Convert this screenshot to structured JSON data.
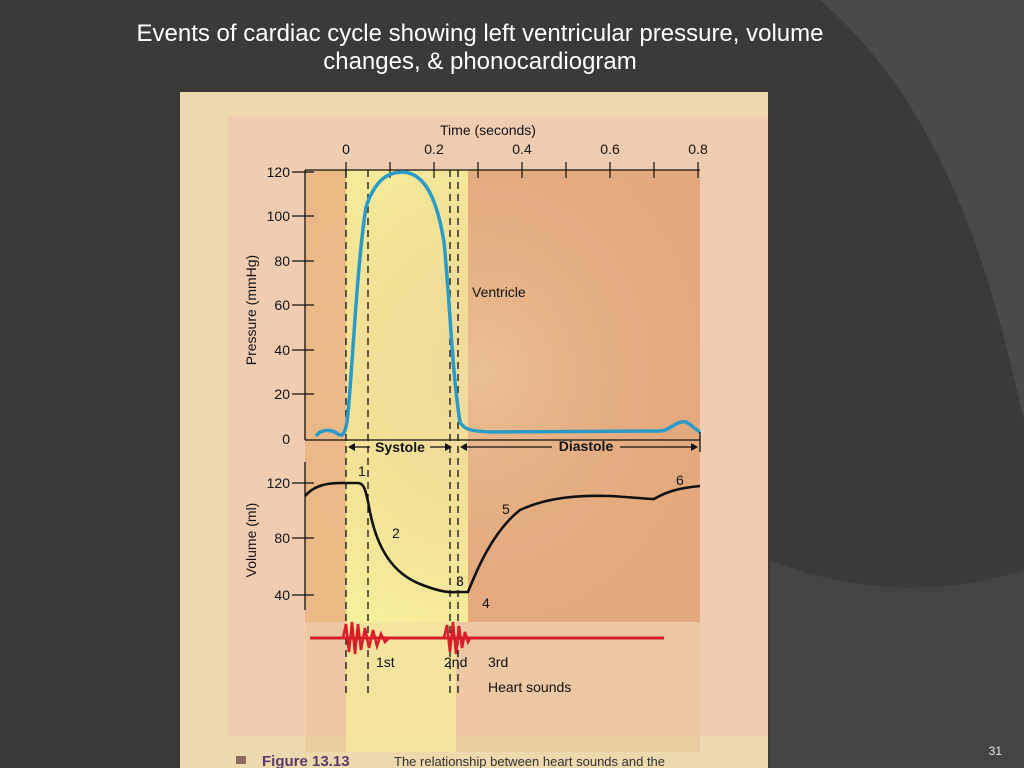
{
  "slide": {
    "title_line1": "Events of cardiac cycle showing left ventricular pressure, volume",
    "title_line2": "changes, & phonocardiogram",
    "slide_number": "31"
  },
  "figure": {
    "time_axis_label": "Time (seconds)",
    "time_ticks": [
      "0",
      "0.2",
      "0.4",
      "0.6",
      "0.8"
    ],
    "pressure_axis_label": "Pressure (mmHg)",
    "pressure_ticks": [
      "120",
      "100",
      "80",
      "60",
      "40",
      "20",
      "0"
    ],
    "ventricle_label": "Ventricle",
    "systole_label": "Systole",
    "diastole_label": "Diastole",
    "volume_axis_label": "Volume (ml)",
    "volume_ticks": [
      "120",
      "80",
      "40"
    ],
    "phase_labels": [
      "1",
      "2",
      "3",
      "4",
      "5",
      "6"
    ],
    "heart_sound_labels": [
      "1st",
      "2nd",
      "3rd"
    ],
    "heart_sounds_label": "Heart sounds",
    "caption": "Figure 13.13",
    "caption_text": "The relationship between heart sounds and the"
  },
  "colors": {
    "slide_bg": "#3a3a3a",
    "systole_band": "#f5ef9a",
    "diastole_band": "#e4ae7e",
    "pressure_curve": "#2a9ac6",
    "volume_curve": "#111111",
    "phonocardiogram": "#d81e2a"
  }
}
